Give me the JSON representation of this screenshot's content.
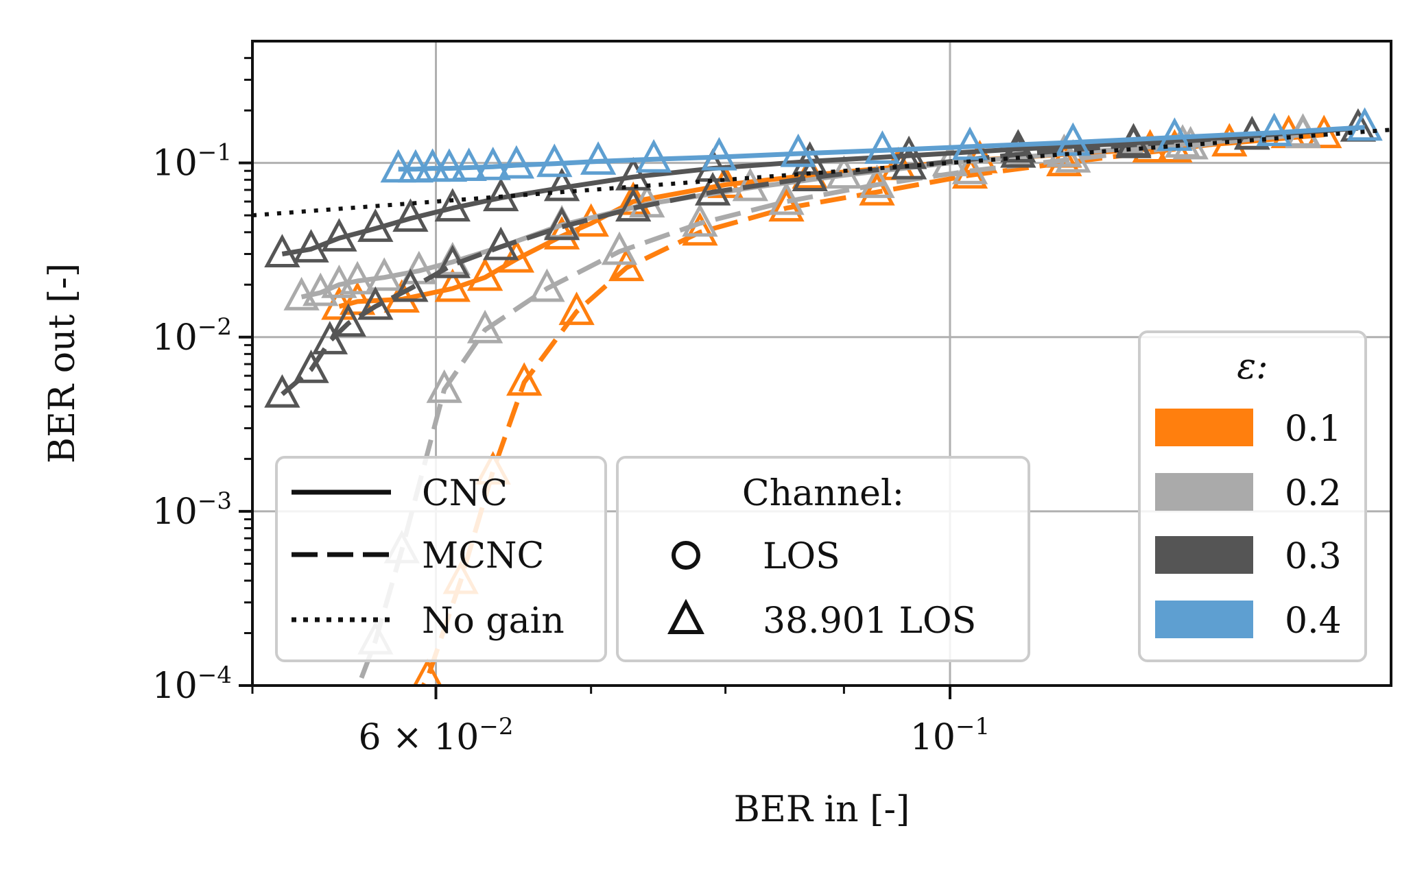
{
  "chart_data": {
    "type": "line",
    "xlabel": "BER in [-]",
    "ylabel": "BER out [-]",
    "x_scale": "log",
    "y_scale": "log",
    "xlim": [
      0.05,
      0.155
    ],
    "ylim": [
      0.0001,
      0.5
    ],
    "grid": true,
    "x_major_ticks": [
      {
        "value": 0.06,
        "label": "6 × 10",
        "exp": "−2"
      },
      {
        "value": 0.1,
        "label": "10",
        "exp": "−1"
      }
    ],
    "x_minor_ticks": [
      0.05,
      0.07,
      0.08,
      0.09,
      0.2
    ],
    "y_major_ticks": [
      {
        "value": 0.0001,
        "label": "10",
        "exp": "−4"
      },
      {
        "value": 0.001,
        "label": "10",
        "exp": "−3"
      },
      {
        "value": 0.01,
        "label": "10",
        "exp": "−2"
      },
      {
        "value": 0.1,
        "label": "10",
        "exp": "−1"
      }
    ],
    "reference_line": {
      "name": "No gain",
      "style": "dotted",
      "x": [
        0.05,
        0.155
      ],
      "y": [
        0.05,
        0.155
      ]
    },
    "legends": {
      "scheme": {
        "placement": "lower-left",
        "entries": [
          {
            "label": "CNC",
            "style": "solid"
          },
          {
            "label": "MCNC",
            "style": "dashed"
          },
          {
            "label": "No gain",
            "style": "dotted"
          }
        ]
      },
      "channel": {
        "placement": "lower-center",
        "title": "Channel:",
        "entries": [
          {
            "label": "LOS",
            "marker": "circle"
          },
          {
            "label": "38.901 LOS",
            "marker": "triangle"
          }
        ]
      },
      "epsilon": {
        "placement": "lower-right",
        "title": "ε:",
        "entries": [
          {
            "label": "0.1",
            "color": "#ff7f0e"
          },
          {
            "label": "0.2",
            "color": "#aaaaaa"
          },
          {
            "label": "0.3",
            "color": "#555555"
          },
          {
            "label": "0.4",
            "color": "#5e9fd1"
          }
        ]
      }
    },
    "series": [
      {
        "epsilon": "0.1",
        "scheme": "CNC",
        "color": "#ff7f0e",
        "x": [
          0.0545,
          0.0555,
          0.058,
          0.061,
          0.063,
          0.065,
          0.068,
          0.07,
          0.073,
          0.08,
          0.087,
          0.095,
          0.103,
          0.112,
          0.122,
          0.132,
          0.145
        ],
        "y": [
          0.015,
          0.016,
          0.0165,
          0.019,
          0.022,
          0.028,
          0.038,
          0.045,
          0.06,
          0.075,
          0.085,
          0.095,
          0.104,
          0.112,
          0.12,
          0.13,
          0.145
        ]
      },
      {
        "epsilon": "0.1",
        "scheme": "MCNC",
        "color": "#ff7f0e",
        "x": [
          0.0575,
          0.0595,
          0.0615,
          0.0635,
          0.0655,
          0.069,
          0.0725,
          0.078,
          0.085,
          0.093,
          0.102,
          0.112,
          0.125,
          0.14
        ],
        "y": [
          5e-05,
          0.00011,
          0.0004,
          0.0017,
          0.0055,
          0.014,
          0.025,
          0.04,
          0.055,
          0.068,
          0.085,
          0.1,
          0.12,
          0.145
        ]
      },
      {
        "epsilon": "0.2",
        "scheme": "CNC",
        "color": "#aaaaaa",
        "x": [
          0.0525,
          0.0535,
          0.0545,
          0.0555,
          0.057,
          0.059,
          0.061,
          0.064,
          0.068,
          0.074,
          0.082,
          0.09,
          0.1,
          0.112,
          0.126,
          0.142
        ],
        "y": [
          0.017,
          0.018,
          0.02,
          0.021,
          0.022,
          0.024,
          0.027,
          0.033,
          0.044,
          0.058,
          0.072,
          0.085,
          0.1,
          0.113,
          0.128,
          0.145
        ]
      },
      {
        "epsilon": "0.2",
        "scheme": "MCNC",
        "color": "#aaaaaa",
        "x": [
          0.055,
          0.0565,
          0.058,
          0.0605,
          0.063,
          0.067,
          0.072,
          0.078,
          0.085,
          0.093,
          0.102,
          0.113,
          0.127,
          0.142
        ],
        "y": [
          7e-05,
          0.00018,
          0.0006,
          0.005,
          0.011,
          0.019,
          0.031,
          0.045,
          0.06,
          0.075,
          0.09,
          0.105,
          0.125,
          0.148
        ]
      },
      {
        "epsilon": "0.3",
        "scheme": "CNC",
        "color": "#555555",
        "x": [
          0.0515,
          0.053,
          0.0545,
          0.0565,
          0.0585,
          0.061,
          0.064,
          0.068,
          0.073,
          0.079,
          0.087,
          0.096,
          0.107,
          0.12,
          0.135,
          0.15
        ],
        "y": [
          0.03,
          0.032,
          0.037,
          0.042,
          0.048,
          0.055,
          0.063,
          0.072,
          0.083,
          0.093,
          0.102,
          0.11,
          0.12,
          0.13,
          0.143,
          0.158
        ]
      },
      {
        "epsilon": "0.3",
        "scheme": "MCNC",
        "color": "#555555",
        "x": [
          0.0515,
          0.053,
          0.054,
          0.055,
          0.0565,
          0.0585,
          0.061,
          0.064,
          0.068,
          0.073,
          0.079,
          0.087,
          0.096,
          0.107,
          0.12,
          0.135
        ],
        "y": [
          0.0047,
          0.0065,
          0.0095,
          0.012,
          0.015,
          0.019,
          0.026,
          0.033,
          0.043,
          0.055,
          0.068,
          0.082,
          0.096,
          0.112,
          0.127,
          0.142
        ]
      },
      {
        "epsilon": "0.4",
        "scheme": "CNC",
        "color": "#5e9fd1",
        "x": [
          0.0578,
          0.0588,
          0.0598,
          0.0608,
          0.062,
          0.0635,
          0.065,
          0.0675,
          0.0705,
          0.0745,
          0.0795,
          0.086,
          0.0935,
          0.102,
          0.113,
          0.125,
          0.138,
          0.151
        ],
        "y": [
          0.092,
          0.092,
          0.093,
          0.093,
          0.094,
          0.095,
          0.097,
          0.099,
          0.102,
          0.105,
          0.108,
          0.113,
          0.118,
          0.124,
          0.131,
          0.14,
          0.149,
          0.16
        ]
      }
    ]
  }
}
